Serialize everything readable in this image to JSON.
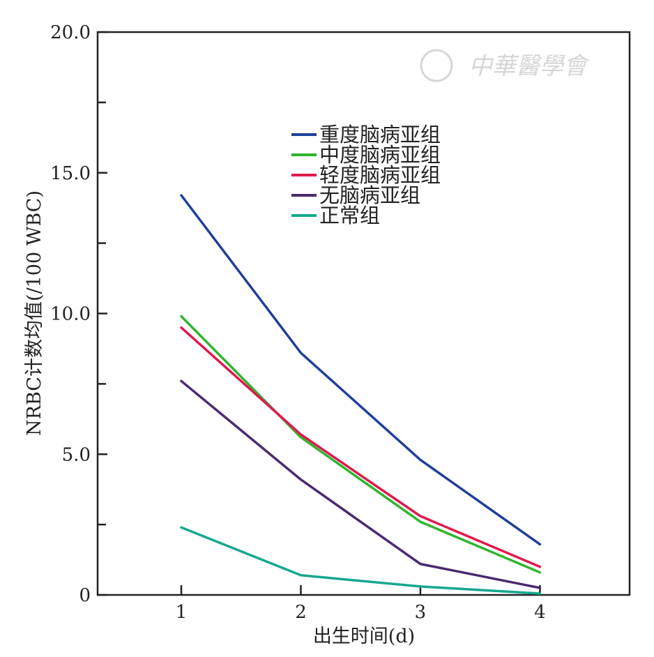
{
  "watermark": {
    "text": "中華醫學會"
  },
  "chart_data": {
    "type": "line",
    "title": "",
    "xlabel": "出生时间(d)",
    "ylabel": "NRBC计数均值(/100 WBC)",
    "x": [
      1,
      2,
      3,
      4
    ],
    "x_tick_labels": [
      "1",
      "2",
      "3",
      "4"
    ],
    "y_tick_labels": [
      "0",
      "5.0",
      "10.0",
      "15.0",
      "20.0"
    ],
    "y_ticks": [
      0,
      5,
      10,
      15,
      20
    ],
    "y_minor_ticks": [
      2.5,
      7.5,
      12.5,
      17.5
    ],
    "xlim": [
      0.3,
      4.75
    ],
    "ylim": [
      0,
      20
    ],
    "grid": false,
    "legend_position": "upper-center",
    "series": [
      {
        "name": "重度脑病亚组",
        "color": "#1f3f99",
        "values": [
          14.2,
          8.6,
          4.8,
          1.8
        ]
      },
      {
        "name": "中度脑病亚组",
        "color": "#2fb52f",
        "values": [
          9.9,
          5.6,
          2.6,
          0.8
        ]
      },
      {
        "name": "轻度脑病亚组",
        "color": "#e0194d",
        "values": [
          9.5,
          5.7,
          2.8,
          1.0
        ]
      },
      {
        "name": "无脑病亚组",
        "color": "#4a2a6e",
        "values": [
          7.6,
          4.1,
          1.1,
          0.25
        ]
      },
      {
        "name": "正常组",
        "color": "#15a88e",
        "values": [
          2.4,
          0.7,
          0.3,
          0.05
        ]
      }
    ]
  }
}
